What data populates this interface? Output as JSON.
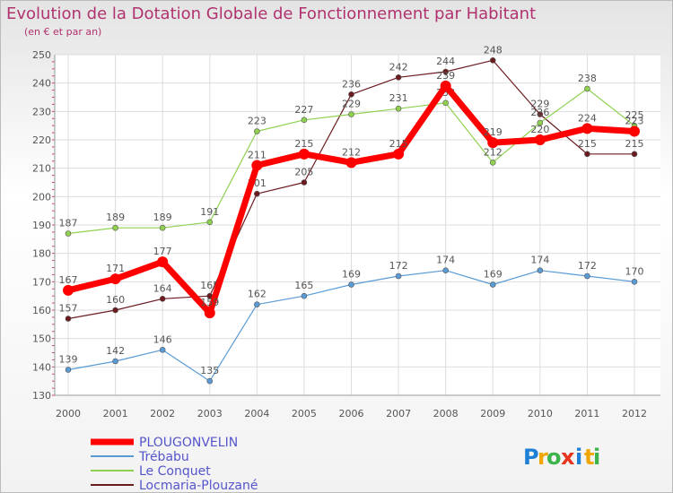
{
  "header": {
    "title": "Evolution de la Dotation Globale de Fonctionnement par Habitant",
    "subtitle": "(en € et par an)"
  },
  "logo": {
    "text": "Proxiti",
    "letters": [
      "P",
      "r",
      "o",
      "x",
      "i",
      "t",
      "i"
    ],
    "colors": [
      "#1e7fd6",
      "#f0a500",
      "#3cb44b",
      "#e8341c",
      "#1e7fd6",
      "#f0a500",
      "#3cb44b"
    ]
  },
  "chart_data": {
    "type": "line",
    "title": "Evolution de la Dotation Globale de Fonctionnement par Habitant",
    "subtitle": "(en € et par an)",
    "xlabel": "",
    "ylabel": "",
    "x": [
      "2000",
      "2001",
      "2002",
      "2003",
      "2004",
      "2005",
      "2006",
      "2007",
      "2008",
      "2009",
      "2010",
      "2011",
      "2012"
    ],
    "ylim": [
      130,
      250
    ],
    "yticks": [
      130,
      140,
      150,
      160,
      170,
      180,
      190,
      200,
      210,
      220,
      230,
      240,
      250
    ],
    "grid": true,
    "legend": "bottom-left",
    "series": [
      {
        "name": "Locmaria-Plouzané",
        "color": "#6b1a1e",
        "values": [
          157,
          160,
          164,
          165,
          201,
          205,
          236,
          242,
          244,
          248,
          229,
          215,
          215
        ]
      },
      {
        "name": "Le Conquet",
        "color": "#8fd14f",
        "values": [
          187,
          189,
          189,
          191,
          223,
          227,
          229,
          231,
          233,
          212,
          226,
          238,
          225
        ]
      },
      {
        "name": "Trébabu",
        "color": "#5a9bd5",
        "values": [
          139,
          142,
          146,
          135,
          162,
          165,
          169,
          172,
          174,
          169,
          174,
          172,
          170
        ]
      },
      {
        "name": "PLOUGONVELIN",
        "color": "#ff0000",
        "values": [
          167,
          171,
          177,
          159,
          211,
          215,
          212,
          215,
          239,
          219,
          220,
          224,
          223
        ]
      }
    ]
  }
}
